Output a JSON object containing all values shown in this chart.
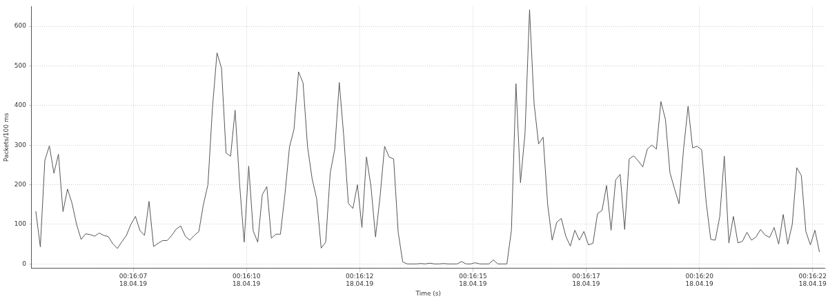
{
  "chart_data": {
    "type": "line",
    "xlabel": "Time (s)",
    "ylabel": "Packets/100 ms",
    "x": [
      "--04-18T00:16:05.35",
      "--04-18T00:16:05.45",
      "--04-18T00:16:05.55",
      "--04-18T00:16:05.65",
      "--04-18T00:16:05.75",
      "--04-18T00:16:05.85",
      "--04-18T00:16:05.95",
      "--04-18T00:16:06.05",
      "--04-18T00:16:06.15",
      "--04-18T00:16:06.25",
      "--04-18T00:16:06.35",
      "--04-18T00:16:06.45",
      "--04-18T00:16:06.55",
      "--04-18T00:16:06.65",
      "--04-18T00:16:06.75",
      "--04-18T00:16:06.85",
      "--04-18T00:16:06.95",
      "--04-18T00:16:07.05",
      "--04-18T00:16:07.15",
      "--04-18T00:16:07.25",
      "--04-18T00:16:07.35",
      "--04-18T00:16:07.45",
      "--04-18T00:16:07.55",
      "--04-18T00:16:07.65",
      "--04-18T00:16:07.75",
      "--04-18T00:16:07.85",
      "--04-18T00:16:07.95",
      "--04-18T00:16:08.05",
      "--04-18T00:16:08.15",
      "--04-18T00:16:08.25",
      "--04-18T00:16:08.35",
      "--04-18T00:16:08.45",
      "--04-18T00:16:08.55",
      "--04-18T00:16:08.65",
      "--04-18T00:16:08.75",
      "--04-18T00:16:08.85",
      "--04-18T00:16:08.95",
      "--04-18T00:16:09.05",
      "--04-18T00:16:09.15",
      "--04-18T00:16:09.25",
      "--04-18T00:16:09.35",
      "--04-18T00:16:09.45",
      "--04-18T00:16:09.55",
      "--04-18T00:16:09.65",
      "--04-18T00:16:09.75",
      "--04-18T00:16:09.85",
      "--04-18T00:16:09.95",
      "--04-18T00:16:10.05",
      "--04-18T00:16:10.15",
      "--04-18T00:16:10.25",
      "--04-18T00:16:10.35",
      "--04-18T00:16:10.45",
      "--04-18T00:16:10.55",
      "--04-18T00:16:10.65",
      "--04-18T00:16:10.75",
      "--04-18T00:16:10.85",
      "--04-18T00:16:10.95",
      "--04-18T00:16:11.05",
      "--04-18T00:16:11.15",
      "--04-18T00:16:11.25",
      "--04-18T00:16:11.35",
      "--04-18T00:16:11.45",
      "--04-18T00:16:11.55",
      "--04-18T00:16:11.65",
      "--04-18T00:16:11.75",
      "--04-18T00:16:11.85",
      "--04-18T00:16:11.95",
      "--04-18T00:16:12.05",
      "--04-18T00:16:12.15",
      "--04-18T00:16:12.25",
      "--04-18T00:16:12.35",
      "--04-18T00:16:12.45",
      "--04-18T00:16:12.55",
      "--04-18T00:16:12.65",
      "--04-18T00:16:12.75",
      "--04-18T00:16:12.85",
      "--04-18T00:16:12.95",
      "--04-18T00:16:13.05",
      "--04-18T00:16:13.15",
      "--04-18T00:16:13.25",
      "--04-18T00:16:13.35",
      "--04-18T00:16:13.45",
      "--04-18T00:16:13.55",
      "--04-18T00:16:13.65",
      "--04-18T00:16:13.75",
      "--04-18T00:16:13.85",
      "--04-18T00:16:13.95",
      "--04-18T00:16:14.05",
      "--04-18T00:16:14.15",
      "--04-18T00:16:14.25",
      "--04-18T00:16:14.35",
      "--04-18T00:16:14.45",
      "--04-18T00:16:14.55",
      "--04-18T00:16:14.65",
      "--04-18T00:16:14.75",
      "--04-18T00:16:14.85",
      "--04-18T00:16:14.95",
      "--04-18T00:16:15.05",
      "--04-18T00:16:15.15",
      "--04-18T00:16:15.25",
      "--04-18T00:16:15.35",
      "--04-18T00:16:15.45",
      "--04-18T00:16:15.55",
      "--04-18T00:16:15.65",
      "--04-18T00:16:15.75",
      "--04-18T00:16:15.85",
      "--04-18T00:16:15.95",
      "--04-18T00:16:16.05",
      "--04-18T00:16:16.15",
      "--04-18T00:16:16.25",
      "--04-18T00:16:16.35",
      "--04-18T00:16:16.45",
      "--04-18T00:16:16.55",
      "--04-18T00:16:16.65",
      "--04-18T00:16:16.75",
      "--04-18T00:16:16.85",
      "--04-18T00:16:16.95",
      "--04-18T00:16:17.05",
      "--04-18T00:16:17.15",
      "--04-18T00:16:17.25",
      "--04-18T00:16:17.35",
      "--04-18T00:16:17.45",
      "--04-18T00:16:17.55",
      "--04-18T00:16:17.65",
      "--04-18T00:16:17.75",
      "--04-18T00:16:17.85",
      "--04-18T00:16:17.95",
      "--04-18T00:16:18.05",
      "--04-18T00:16:18.15",
      "--04-18T00:16:18.25",
      "--04-18T00:16:18.35",
      "--04-18T00:16:18.45",
      "--04-18T00:16:18.55",
      "--04-18T00:16:18.65",
      "--04-18T00:16:18.75",
      "--04-18T00:16:18.85",
      "--04-18T00:16:18.95",
      "--04-18T00:16:19.05",
      "--04-18T00:16:19.15",
      "--04-18T00:16:19.25",
      "--04-18T00:16:19.35",
      "--04-18T00:16:19.45",
      "--04-18T00:16:19.55",
      "--04-18T00:16:19.65",
      "--04-18T00:16:19.75",
      "--04-18T00:16:19.85",
      "--04-18T00:16:19.95",
      "--04-18T00:16:20.05",
      "--04-18T00:16:20.15",
      "--04-18T00:16:20.25",
      "--04-18T00:16:20.35",
      "--04-18T00:16:20.45",
      "--04-18T00:16:20.55",
      "--04-18T00:16:20.65",
      "--04-18T00:16:20.75",
      "--04-18T00:16:20.85",
      "--04-18T00:16:20.95",
      "--04-18T00:16:21.05",
      "--04-18T00:16:21.15",
      "--04-18T00:16:21.25",
      "--04-18T00:16:21.35",
      "--04-18T00:16:21.45",
      "--04-18T00:16:21.55",
      "--04-18T00:16:21.65",
      "--04-18T00:16:21.75",
      "--04-18T00:16:21.85",
      "--04-18T00:16:21.95",
      "--04-18T00:16:22.05",
      "--04-18T00:16:22.15",
      "--04-18T00:16:22.25",
      "--04-18T00:16:22.35",
      "--04-18T00:16:22.45",
      "--04-18T00:16:22.55",
      "--04-18T00:16:22.65"
    ],
    "series": [
      {
        "color": "#555555",
        "values": [
          133,
          43,
          262,
          298,
          229,
          277,
          132,
          189,
          153,
          100,
          62,
          76,
          74,
          70,
          78,
          72,
          69,
          51,
          39,
          56,
          72,
          100,
          120,
          84,
          72,
          158,
          44,
          52,
          59,
          59,
          72,
          88,
          96,
          70,
          60,
          72,
          82,
          150,
          200,
          394,
          533,
          494,
          280,
          272,
          388,
          200,
          55,
          247,
          83,
          55,
          175,
          195,
          65,
          75,
          75,
          175,
          295,
          340,
          485,
          457,
          295,
          215,
          165,
          40,
          55,
          230,
          290,
          458,
          320,
          153,
          140,
          200,
          92,
          270,
          195,
          68,
          170,
          297,
          270,
          265,
          80,
          5,
          0,
          0,
          0,
          1,
          0,
          2,
          0,
          0,
          1,
          0,
          0,
          0,
          6,
          0,
          0,
          3,
          0,
          0,
          0,
          10,
          0,
          0,
          0,
          85,
          455,
          205,
          330,
          642,
          405,
          303,
          320,
          150,
          60,
          105,
          115,
          70,
          45,
          85,
          60,
          82,
          48,
          52,
          127,
          135,
          198,
          85,
          212,
          226,
          87,
          265,
          273,
          260,
          245,
          290,
          300,
          290,
          410,
          365,
          230,
          190,
          152,
          290,
          398,
          293,
          297,
          288,
          155,
          62,
          60,
          120,
          272,
          53,
          120,
          53,
          57,
          80,
          60,
          68,
          87,
          73,
          67,
          92,
          50,
          125,
          50,
          100,
          243,
          223,
          82,
          48,
          85,
          30
        ]
      }
    ],
    "xlim": [
      "--04-18T00:16:05.26",
      "--04-18T00:16:22.77"
    ],
    "xticks": [
      {
        "value": "--04-18T00:16:07.5",
        "label": "00:16:07\n18.04.19"
      },
      {
        "value": "--04-18T00:16:10",
        "label": "00:16:10\n18.04.19"
      },
      {
        "value": "--04-18T00:16:12.5",
        "label": "00:16:12\n18.04.19"
      },
      {
        "value": "--04-18T00:16:15",
        "label": "00:16:15\n18.04.19"
      },
      {
        "value": "--04-18T00:16:17.5",
        "label": "00:16:17\n18.04.19"
      },
      {
        "value": "--04-18T00:16:20",
        "label": "00:16:20\n18.04.19"
      },
      {
        "value": "--04-18T00:16:22.5",
        "label": "00:16:22\n18.04.19"
      }
    ],
    "ylim": [
      -11,
      650
    ],
    "yticks": [
      0,
      100,
      200,
      300,
      400,
      500,
      600
    ],
    "grid": true,
    "legend": false,
    "marker": "none",
    "line_style": "solid"
  }
}
